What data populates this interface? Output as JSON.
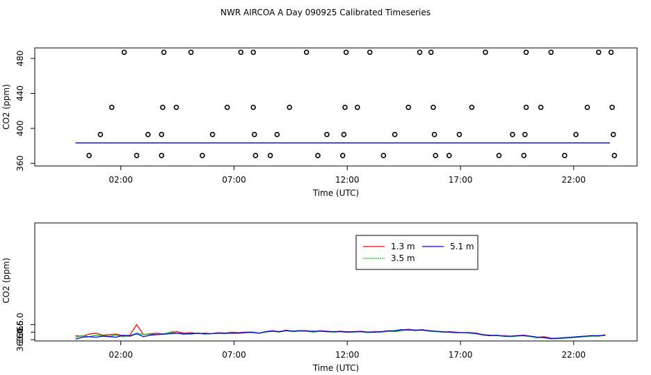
{
  "figure_title": "NWR AIRCOA A  Day 090925  Calibrated Timeseries",
  "chart_data": [
    {
      "type": "scatter",
      "panel": "top",
      "xlabel": "Time (UTC)",
      "ylabel": "CO2 (ppm)",
      "xlim": [
        -1.8,
        24.8
      ],
      "ylim": [
        357,
        492
      ],
      "x_ticks": [
        2,
        7,
        12,
        17,
        22
      ],
      "x_tick_labels": [
        "02:00",
        "07:00",
        "12:00",
        "17:00",
        "22:00"
      ],
      "y_ticks": [
        360,
        400,
        440,
        480
      ],
      "y_tick_labels": [
        "360",
        "400",
        "440",
        "480"
      ],
      "standards": [
        {
          "x": 2.15,
          "y": 487
        },
        {
          "x": 3.9,
          "y": 487
        },
        {
          "x": 5.1,
          "y": 487
        },
        {
          "x": 7.3,
          "y": 487
        },
        {
          "x": 7.85,
          "y": 487
        },
        {
          "x": 10.2,
          "y": 487
        },
        {
          "x": 11.95,
          "y": 487
        },
        {
          "x": 13.0,
          "y": 487
        },
        {
          "x": 15.2,
          "y": 487
        },
        {
          "x": 15.7,
          "y": 487
        },
        {
          "x": 18.1,
          "y": 487
        },
        {
          "x": 19.9,
          "y": 487
        },
        {
          "x": 21.0,
          "y": 487
        },
        {
          "x": 23.1,
          "y": 487
        },
        {
          "x": 23.65,
          "y": 487
        },
        {
          "x": 1.6,
          "y": 424
        },
        {
          "x": 3.85,
          "y": 424
        },
        {
          "x": 4.45,
          "y": 424
        },
        {
          "x": 6.7,
          "y": 424
        },
        {
          "x": 7.85,
          "y": 424
        },
        {
          "x": 9.45,
          "y": 424
        },
        {
          "x": 11.9,
          "y": 424
        },
        {
          "x": 12.45,
          "y": 424
        },
        {
          "x": 14.7,
          "y": 424
        },
        {
          "x": 15.8,
          "y": 424
        },
        {
          "x": 17.5,
          "y": 424
        },
        {
          "x": 19.9,
          "y": 424
        },
        {
          "x": 20.55,
          "y": 424
        },
        {
          "x": 22.6,
          "y": 424
        },
        {
          "x": 23.7,
          "y": 424
        },
        {
          "x": 1.1,
          "y": 393
        },
        {
          "x": 3.2,
          "y": 393
        },
        {
          "x": 3.8,
          "y": 393
        },
        {
          "x": 6.05,
          "y": 393
        },
        {
          "x": 7.9,
          "y": 393
        },
        {
          "x": 8.9,
          "y": 393
        },
        {
          "x": 11.1,
          "y": 393
        },
        {
          "x": 11.85,
          "y": 393
        },
        {
          "x": 14.1,
          "y": 393
        },
        {
          "x": 15.85,
          "y": 393
        },
        {
          "x": 16.95,
          "y": 393
        },
        {
          "x": 19.3,
          "y": 393
        },
        {
          "x": 19.85,
          "y": 393
        },
        {
          "x": 22.1,
          "y": 393
        },
        {
          "x": 23.75,
          "y": 393
        },
        {
          "x": 0.6,
          "y": 369
        },
        {
          "x": 2.7,
          "y": 369
        },
        {
          "x": 3.8,
          "y": 369
        },
        {
          "x": 5.6,
          "y": 369
        },
        {
          "x": 7.95,
          "y": 369
        },
        {
          "x": 8.6,
          "y": 369
        },
        {
          "x": 10.7,
          "y": 369
        },
        {
          "x": 11.8,
          "y": 369
        },
        {
          "x": 13.6,
          "y": 369
        },
        {
          "x": 15.9,
          "y": 369
        },
        {
          "x": 16.5,
          "y": 369
        },
        {
          "x": 18.7,
          "y": 369
        },
        {
          "x": 19.8,
          "y": 369
        },
        {
          "x": 21.6,
          "y": 369
        },
        {
          "x": 23.8,
          "y": 369
        }
      ],
      "series": [
        {
          "name": "1.3 m",
          "color": "#ff0000",
          "x": [
            0,
            23.6
          ],
          "y": [
            383.5,
            383.5
          ]
        },
        {
          "name": "3.5 m",
          "color": "#00cc00",
          "x": [
            0,
            23.6
          ],
          "y": [
            383.4,
            383.4
          ]
        },
        {
          "name": "5.1 m",
          "color": "#0000ff",
          "x": [
            0,
            23.6
          ],
          "y": [
            383.3,
            383.3
          ]
        }
      ]
    },
    {
      "type": "line",
      "panel": "bottom",
      "xlabel": "Time (UTC)",
      "ylabel": "CO2 (ppm)",
      "xlim": [
        -1.8,
        24.8
      ],
      "ylim": [
        362.75,
        386.2
      ],
      "x_ticks": [
        2,
        7,
        12,
        17,
        22
      ],
      "x_tick_labels": [
        "02:00",
        "07:00",
        "12:00",
        "17:00",
        "22:00"
      ],
      "y_ticks": [
        363.0,
        364.5,
        366.0
      ],
      "y_tick_labels": [
        "363.0",
        "364.5",
        "366.0"
      ],
      "legend": {
        "position": "top-center-right",
        "entries": [
          "1.3 m",
          "5.1 m",
          "3.5 m"
        ]
      },
      "series": [
        {
          "name": "1.3 m",
          "color": "#ff0000",
          "x": [
            0,
            0.3,
            0.6,
            0.9,
            1.2,
            1.5,
            1.8,
            2.1,
            2.4,
            2.7,
            3,
            3.3,
            3.6,
            3.9,
            4.2,
            4.5,
            4.8,
            5.1,
            5.4,
            5.7,
            6,
            6.3,
            6.6,
            6.9,
            7.2,
            7.5,
            7.8,
            8.1,
            8.4,
            8.7,
            9,
            9.3,
            9.6,
            9.9,
            10.2,
            10.5,
            10.8,
            11.1,
            11.4,
            11.7,
            12,
            12.3,
            12.6,
            12.9,
            13.2,
            13.5,
            13.8,
            14.1,
            14.4,
            14.7,
            15,
            15.3,
            15.6,
            15.9,
            16.2,
            16.5,
            16.8,
            17.1,
            17.4,
            17.7,
            18,
            18.3,
            18.6,
            18.9,
            19.2,
            19.5,
            19.8,
            20.1,
            20.4,
            20.7,
            21,
            21.3,
            21.6,
            21.9,
            22.2,
            22.5,
            22.8,
            23.1,
            23.4
          ],
          "y": [
            363.8,
            363.7,
            364.1,
            364.3,
            363.9,
            364.0,
            364.1,
            363.8,
            363.9,
            366.0,
            364.0,
            364.2,
            364.3,
            364.1,
            364.5,
            364.6,
            364.3,
            364.4,
            364.2,
            364.3,
            364.2,
            364.4,
            364.3,
            364.5,
            364.4,
            364.5,
            364.5,
            364.3,
            364.6,
            364.8,
            364.6,
            364.9,
            364.7,
            364.8,
            364.8,
            364.6,
            364.8,
            364.7,
            364.6,
            364.7,
            364.6,
            364.6,
            364.7,
            364.5,
            364.6,
            364.6,
            364.8,
            364.7,
            364.9,
            365.1,
            364.9,
            365.0,
            364.8,
            364.7,
            364.5,
            364.6,
            364.5,
            364.4,
            364.4,
            364.3,
            364.0,
            363.9,
            363.8,
            363.8,
            363.7,
            363.8,
            363.9,
            363.7,
            363.5,
            363.6,
            363.3,
            363.3,
            363.4,
            363.5,
            363.6,
            363.7,
            363.8,
            363.7,
            364.0
          ]
        },
        {
          "name": "3.5 m",
          "color": "#00cc00",
          "x": [
            0,
            0.3,
            0.6,
            0.9,
            1.2,
            1.5,
            1.8,
            2.1,
            2.4,
            2.7,
            3,
            3.3,
            3.6,
            3.9,
            4.2,
            4.5,
            4.8,
            5.1,
            5.4,
            5.7,
            6,
            6.3,
            6.6,
            6.9,
            7.2,
            7.5,
            7.8,
            8.1,
            8.4,
            8.7,
            9,
            9.3,
            9.6,
            9.9,
            10.2,
            10.5,
            10.8,
            11.1,
            11.4,
            11.7,
            12,
            12.3,
            12.6,
            12.9,
            13.2,
            13.5,
            13.8,
            14.1,
            14.4,
            14.7,
            15,
            15.3,
            15.6,
            15.9,
            16.2,
            16.5,
            16.8,
            17.1,
            17.4,
            17.7,
            18,
            18.3,
            18.6,
            18.9,
            19.2,
            19.5,
            19.8,
            20.1,
            20.4,
            20.7,
            21,
            21.3,
            21.6,
            21.9,
            22.2,
            22.5,
            22.8,
            23.1,
            23.4
          ],
          "y": [
            363.5,
            363.8,
            363.6,
            363.9,
            363.8,
            363.7,
            363.9,
            363.6,
            363.8,
            364.3,
            364.0,
            364.1,
            364.0,
            364.2,
            364.4,
            364.3,
            364.2,
            364.1,
            364.3,
            364.1,
            364.2,
            364.3,
            364.2,
            364.4,
            364.3,
            364.4,
            364.4,
            364.3,
            364.5,
            364.7,
            364.5,
            364.8,
            364.6,
            364.7,
            364.7,
            364.5,
            364.7,
            364.6,
            364.5,
            364.6,
            364.5,
            364.5,
            364.6,
            364.4,
            364.5,
            364.5,
            364.7,
            364.6,
            364.8,
            365.0,
            364.8,
            364.9,
            364.7,
            364.6,
            364.5,
            364.5,
            364.4,
            364.4,
            364.3,
            364.2,
            363.9,
            363.8,
            363.8,
            363.7,
            363.6,
            363.7,
            363.8,
            363.6,
            363.4,
            363.5,
            363.2,
            363.2,
            363.3,
            363.4,
            363.5,
            363.6,
            363.7,
            363.7,
            363.9
          ]
        },
        {
          "name": "5.1 m",
          "color": "#0000ff",
          "x": [
            0,
            0.3,
            0.6,
            0.9,
            1.2,
            1.5,
            1.8,
            2.1,
            2.4,
            2.7,
            3,
            3.3,
            3.6,
            3.9,
            4.2,
            4.5,
            4.8,
            5.1,
            5.4,
            5.7,
            6,
            6.3,
            6.6,
            6.9,
            7.2,
            7.5,
            7.8,
            8.1,
            8.4,
            8.7,
            9,
            9.3,
            9.6,
            9.9,
            10.2,
            10.5,
            10.8,
            11.1,
            11.4,
            11.7,
            12,
            12.3,
            12.6,
            12.9,
            13.2,
            13.5,
            13.8,
            14.1,
            14.4,
            14.7,
            15,
            15.3,
            15.6,
            15.9,
            16.2,
            16.5,
            16.8,
            17.1,
            17.4,
            17.7,
            18,
            18.3,
            18.6,
            18.9,
            19.2,
            19.5,
            19.8,
            20.1,
            20.4,
            20.7,
            21,
            21.3,
            21.6,
            21.9,
            22.2,
            22.5,
            22.8,
            23.1,
            23.4
          ],
          "y": [
            363.1,
            363.5,
            363.6,
            363.5,
            363.7,
            363.6,
            363.5,
            363.9,
            363.7,
            364.2,
            363.6,
            363.9,
            364.0,
            364.1,
            364.2,
            364.3,
            364.1,
            364.2,
            364.3,
            364.2,
            364.2,
            364.3,
            364.3,
            364.3,
            364.3,
            364.4,
            364.5,
            364.3,
            364.6,
            364.7,
            364.6,
            364.8,
            364.7,
            364.8,
            364.7,
            364.7,
            364.7,
            364.6,
            364.6,
            364.6,
            364.5,
            364.6,
            364.6,
            364.5,
            364.5,
            364.6,
            364.7,
            364.8,
            365.0,
            364.9,
            364.9,
            364.9,
            364.8,
            364.7,
            364.6,
            364.5,
            364.4,
            364.4,
            364.4,
            364.2,
            364.0,
            363.8,
            363.9,
            363.7,
            363.7,
            363.8,
            363.8,
            363.7,
            363.5,
            363.4,
            363.2,
            363.3,
            363.4,
            363.5,
            363.6,
            363.7,
            363.8,
            363.8,
            363.9
          ]
        }
      ]
    }
  ]
}
